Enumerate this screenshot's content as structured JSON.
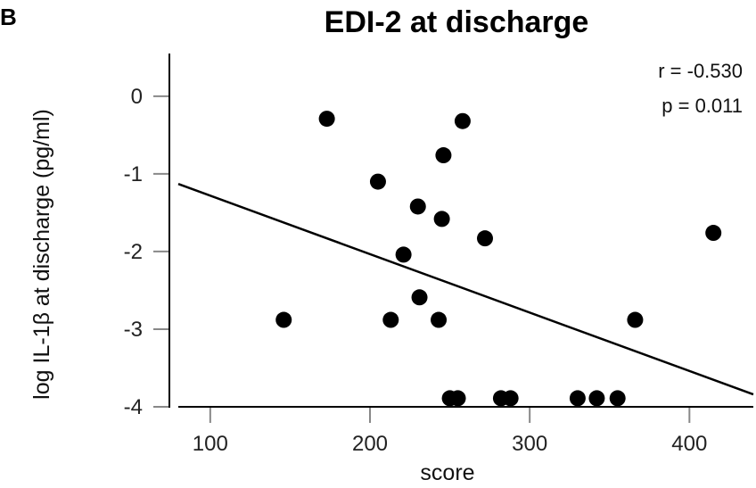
{
  "panel_label": "B",
  "chart_data": {
    "type": "scatter",
    "title": "EDI-2 at discharge",
    "xlabel": "score",
    "ylabel": "log IL-1β at discharge (pg/ml)",
    "xlim": [
      80,
      440
    ],
    "ylim": [
      -4,
      0.55
    ],
    "xticks": [
      100,
      200,
      300,
      400
    ],
    "yticks": [
      0,
      -1,
      -2,
      -3,
      -4
    ],
    "grid": false,
    "annotations": [
      "r = -0.530",
      "p = 0.011"
    ],
    "points": [
      {
        "x": 146,
        "y": -2.88
      },
      {
        "x": 173,
        "y": -0.29
      },
      {
        "x": 205,
        "y": -1.1
      },
      {
        "x": 213,
        "y": -2.88
      },
      {
        "x": 221,
        "y": -2.04
      },
      {
        "x": 230,
        "y": -1.42
      },
      {
        "x": 231,
        "y": -2.59
      },
      {
        "x": 243,
        "y": -2.88
      },
      {
        "x": 245,
        "y": -1.58
      },
      {
        "x": 246,
        "y": -0.76
      },
      {
        "x": 250,
        "y": -3.89
      },
      {
        "x": 255,
        "y": -3.89
      },
      {
        "x": 258,
        "y": -0.32
      },
      {
        "x": 272,
        "y": -1.83
      },
      {
        "x": 282,
        "y": -3.89
      },
      {
        "x": 288,
        "y": -3.89
      },
      {
        "x": 330,
        "y": -3.89
      },
      {
        "x": 342,
        "y": -3.89
      },
      {
        "x": 355,
        "y": -3.89
      },
      {
        "x": 366,
        "y": -2.88
      },
      {
        "x": 415,
        "y": -1.76
      }
    ],
    "fit_line": {
      "x": [
        80,
        440
      ],
      "y": [
        -1.13,
        -3.84
      ]
    }
  }
}
